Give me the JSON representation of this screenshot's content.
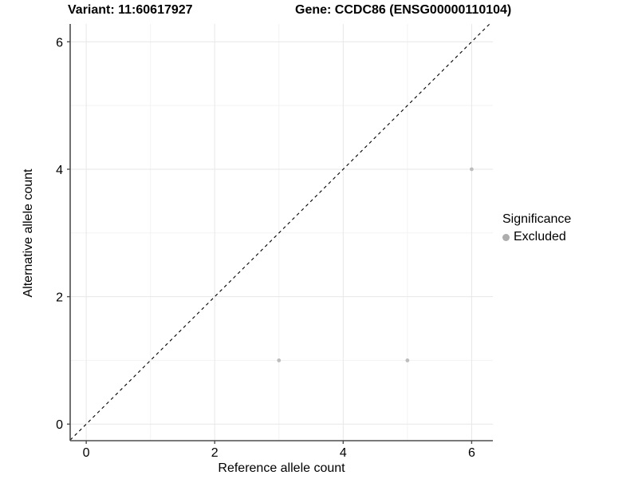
{
  "chart_data": {
    "type": "scatter",
    "title_left": "Variant: 11:60617927",
    "title_right": "Gene: CCDC86 (ENSG00000110104)",
    "xlabel": "Reference allele count",
    "ylabel": "Alternative allele count",
    "xlim": [
      -0.25,
      6.33
    ],
    "ylim": [
      -0.26,
      6.28
    ],
    "x_ticks": [
      0,
      2,
      4,
      6
    ],
    "y_ticks": [
      0,
      2,
      4,
      6
    ],
    "x_minor_ticks": [
      1,
      3,
      5
    ],
    "y_minor_ticks": [
      1,
      3,
      5
    ],
    "grid": true,
    "identity_line": {
      "type": "dashed",
      "slope": 1,
      "intercept": 0,
      "color": "#000000"
    },
    "series": [
      {
        "name": "Excluded",
        "color": "#bdbdbd",
        "points": [
          [
            3,
            1
          ],
          [
            5,
            1
          ],
          [
            6,
            4
          ]
        ]
      }
    ],
    "legend": {
      "title": "Significance",
      "position": "right",
      "items": [
        {
          "label": "Excluded",
          "color": "#adadad"
        }
      ]
    },
    "colors": {
      "grid_major": "#e7e7e7",
      "grid_minor": "#f3f3f3",
      "axis_line": "#4d4d4d",
      "tick_text": "#000000"
    }
  }
}
